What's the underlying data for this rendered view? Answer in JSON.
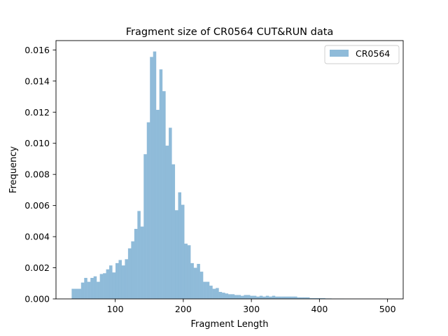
{
  "chart_data": {
    "type": "bar",
    "title": "Fragment size of CR0564 CUT&RUN data",
    "xlabel": "Fragment Length",
    "ylabel": "Frequency",
    "xlim": [
      13,
      523
    ],
    "ylim": [
      0,
      0.0166
    ],
    "x_ticks": [
      "100",
      "200",
      "300",
      "400",
      "500"
    ],
    "x_tick_values": [
      100,
      200,
      300,
      400,
      500
    ],
    "y_ticks": [
      "0.000",
      "0.002",
      "0.004",
      "0.006",
      "0.008",
      "0.010",
      "0.012",
      "0.014",
      "0.016"
    ],
    "y_tick_values": [
      0,
      0.002,
      0.004,
      0.006,
      0.008,
      0.01,
      0.012,
      0.014,
      0.016
    ],
    "grid": false,
    "legend_position": "top-right",
    "bar_color": "#1f77b4",
    "bar_alpha": 0.5,
    "series": [
      {
        "name": "CR0564",
        "bin_width": 4.6,
        "bins": [
          [
            36,
            0.00065
          ],
          [
            40.6,
            0.00065
          ],
          [
            45.2,
            0.00065
          ],
          [
            49.8,
            0.00105
          ],
          [
            54.4,
            0.00135
          ],
          [
            59,
            0.0011
          ],
          [
            63.6,
            0.00135
          ],
          [
            68.2,
            0.00145
          ],
          [
            72.8,
            0.0011
          ],
          [
            77.4,
            0.0016
          ],
          [
            82,
            0.00165
          ],
          [
            86.6,
            0.0019
          ],
          [
            91.2,
            0.00215
          ],
          [
            95.8,
            0.0017
          ],
          [
            100.4,
            0.0023
          ],
          [
            105,
            0.0025
          ],
          [
            109.6,
            0.00215
          ],
          [
            114.2,
            0.00255
          ],
          [
            118.8,
            0.00325
          ],
          [
            123.4,
            0.0037
          ],
          [
            128,
            0.0045
          ],
          [
            132.6,
            0.00565
          ],
          [
            137.2,
            0.00465
          ],
          [
            141.8,
            0.0093
          ],
          [
            146.4,
            0.01135
          ],
          [
            151,
            0.01555
          ],
          [
            155.6,
            0.0159
          ],
          [
            160.2,
            0.01215
          ],
          [
            164.8,
            0.01475
          ],
          [
            169.4,
            0.01335
          ],
          [
            174,
            0.00985
          ],
          [
            178.6,
            0.011
          ],
          [
            183.2,
            0.00865
          ],
          [
            187.8,
            0.0057
          ],
          [
            192.4,
            0.00685
          ],
          [
            197,
            0.00605
          ],
          [
            201.6,
            0.00355
          ],
          [
            206.2,
            0.00345
          ],
          [
            210.8,
            0.0023
          ],
          [
            215.4,
            0.002
          ],
          [
            220,
            0.00225
          ],
          [
            224.6,
            0.00175
          ],
          [
            229.2,
            0.0011
          ],
          [
            233.8,
            0.0011
          ],
          [
            238.4,
            0.00085
          ],
          [
            243,
            0.00065
          ],
          [
            247.6,
            0.0007
          ],
          [
            252.2,
            0.00045
          ],
          [
            256.8,
            0.0004
          ],
          [
            261.4,
            0.00035
          ],
          [
            266,
            0.0003
          ],
          [
            270.6,
            0.0003
          ],
          [
            275.2,
            0.00025
          ],
          [
            279.8,
            0.00025
          ],
          [
            284.4,
            0.0002
          ],
          [
            289,
            0.00025
          ],
          [
            293.6,
            0.00025
          ],
          [
            298.2,
            0.0002
          ],
          [
            302.8,
            0.0002
          ],
          [
            307.4,
            0.00015
          ],
          [
            312,
            0.0002
          ],
          [
            316.6,
            0.00015
          ],
          [
            321.2,
            0.0002
          ],
          [
            325.8,
            0.00015
          ],
          [
            330.4,
            0.0002
          ],
          [
            335,
            0.00015
          ],
          [
            339.6,
            0.00015
          ],
          [
            344.2,
            0.00015
          ],
          [
            348.8,
            0.00015
          ],
          [
            353.4,
            0.00015
          ],
          [
            358,
            0.00015
          ],
          [
            362.6,
            0.00015
          ],
          [
            367.2,
            0.0001
          ],
          [
            371.8,
            0.0001
          ],
          [
            376.4,
            0.0001
          ],
          [
            381,
            0.0001
          ],
          [
            385.6,
            5e-05
          ],
          [
            390.2,
            5e-05
          ],
          [
            394.8,
            5e-05
          ],
          [
            399.4,
            5e-05
          ],
          [
            404,
            5e-05
          ],
          [
            408.6,
            3e-05
          ],
          [
            413.2,
            3e-05
          ],
          [
            417.8,
            2e-05
          ],
          [
            422.4,
            2e-05
          ],
          [
            427,
            2e-05
          ],
          [
            431.6,
            2e-05
          ],
          [
            436.2,
            1e-05
          ],
          [
            440.8,
            1e-05
          ],
          [
            445.4,
            1e-05
          ],
          [
            450,
            1e-05
          ],
          [
            454.6,
            1e-05
          ],
          [
            459.2,
            1e-05
          ],
          [
            463.8,
            1e-05
          ],
          [
            468.4,
            1e-05
          ],
          [
            473,
            1e-05
          ],
          [
            477.6,
            1e-05
          ],
          [
            482.2,
            1e-05
          ],
          [
            486.8,
            1e-05
          ],
          [
            491.4,
            1e-05
          ],
          [
            496,
            1e-05
          ]
        ]
      }
    ]
  }
}
